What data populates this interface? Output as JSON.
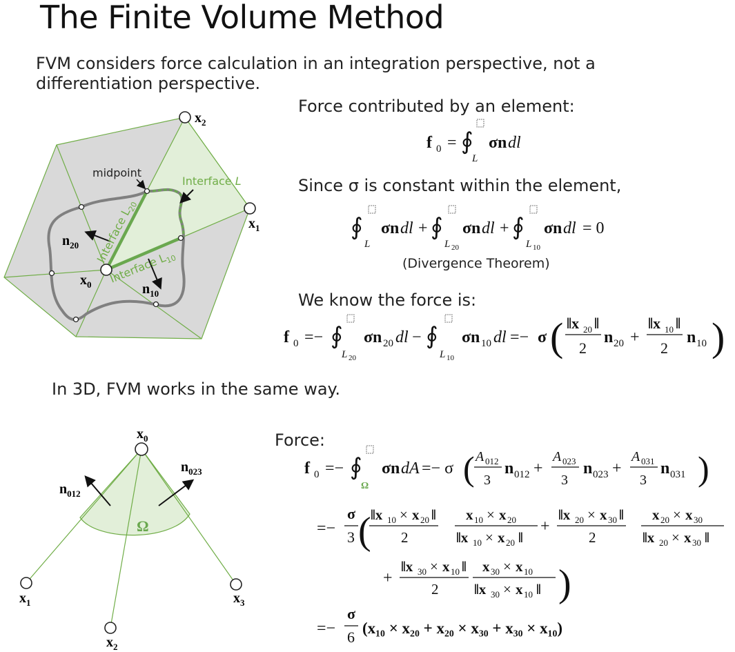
{
  "slide": {
    "title": "The Finite Volume Method",
    "intro": "FVM considers force calculation in an integration perspective, not a differentiation perspective.",
    "force_by_element_label": "Force contributed by an element:",
    "sigma_constant_label": "Since σ is constant within the element,",
    "divergence_theorem_note": "(Divergence Theorem)",
    "we_know_force_label": "We know the force is:",
    "in_3d_label": "In 3D, FVM works in the same way.",
    "force_label": "Force:"
  },
  "figure2d": {
    "labels": {
      "x0": "x",
      "x0_sub": "0",
      "x1": "x",
      "x1_sub": "1",
      "x2": "x",
      "x2_sub": "2",
      "n20": "n",
      "n20_sub": "20",
      "n10": "n",
      "n10_sub": "10",
      "midpoint": "midpoint",
      "interface_L": "Interface ",
      "interface_L_ital": "L",
      "interface_L20": "Interface L",
      "interface_L20_sub": "20",
      "interface_L10": "Interface L",
      "interface_L10_sub": "10"
    },
    "colors": {
      "fill_gray": "#d9d9d9",
      "fill_green": "#e2efd9",
      "edge_green": "#70ad47",
      "curve_gray": "#808080",
      "accent_green": "#6aa84f"
    }
  },
  "figure3d": {
    "labels": {
      "x0": "x",
      "x0_sub": "0",
      "x1": "x",
      "x1_sub": "1",
      "x2": "x",
      "x2_sub": "2",
      "x3": "x",
      "x3_sub": "3",
      "n012": "n",
      "n012_sub": "012",
      "n023": "n",
      "n023_sub": "023",
      "omega": "Ω"
    }
  },
  "equations": {
    "eq1": {
      "lhs": "f",
      "lhs_sub": "0",
      "eq": "=",
      "lim": "L",
      "integrand": "σn",
      "dl": "dl"
    },
    "eq2": {
      "t1_lim": "L",
      "t2_lim": "L",
      "t2_lim_sub": "20",
      "t3_lim": "L",
      "t3_lim_sub": "10",
      "integrand": "σn",
      "dl": "dl",
      "plus": "+",
      "rhs": "= 0"
    },
    "eq3": {
      "lhs": "f",
      "lhs_sub": "0",
      "eq1": "=−",
      "lim1": "L",
      "lim1_sub": "20",
      "n1_sub": "20",
      "minus": "−",
      "lim2": "L",
      "lim2_sub": "10",
      "n2_sub": "10",
      "eq2": "=− σ",
      "num1": "‖x",
      "num1_sub": "20",
      "num2": "‖x",
      "num2_sub": "10",
      "den": "2",
      "plus": "+"
    },
    "eq4": {
      "lhs": "f",
      "lhs_sub": "0",
      "eq1": "=−",
      "lim": "Ω",
      "integrand": "σn",
      "dA": "dA",
      "eq2": "=− σ",
      "A1": "A",
      "A1_sub": "012",
      "A2": "A",
      "A2_sub": "023",
      "A3": "A",
      "A3_sub": "031",
      "den": "3",
      "n1_sub": "012",
      "n2_sub": "023",
      "n3_sub": "031"
    },
    "eq5": {
      "eq": "=−",
      "frac_num": "σ",
      "frac_den": "3"
    },
    "eq6": {
      "eq": "=−",
      "frac_num": "σ",
      "frac_den": "6",
      "body": "(x₁₀ × x₂₀ + x₂₀ × x₃₀ + x₃₀ × x₁₀)"
    }
  }
}
